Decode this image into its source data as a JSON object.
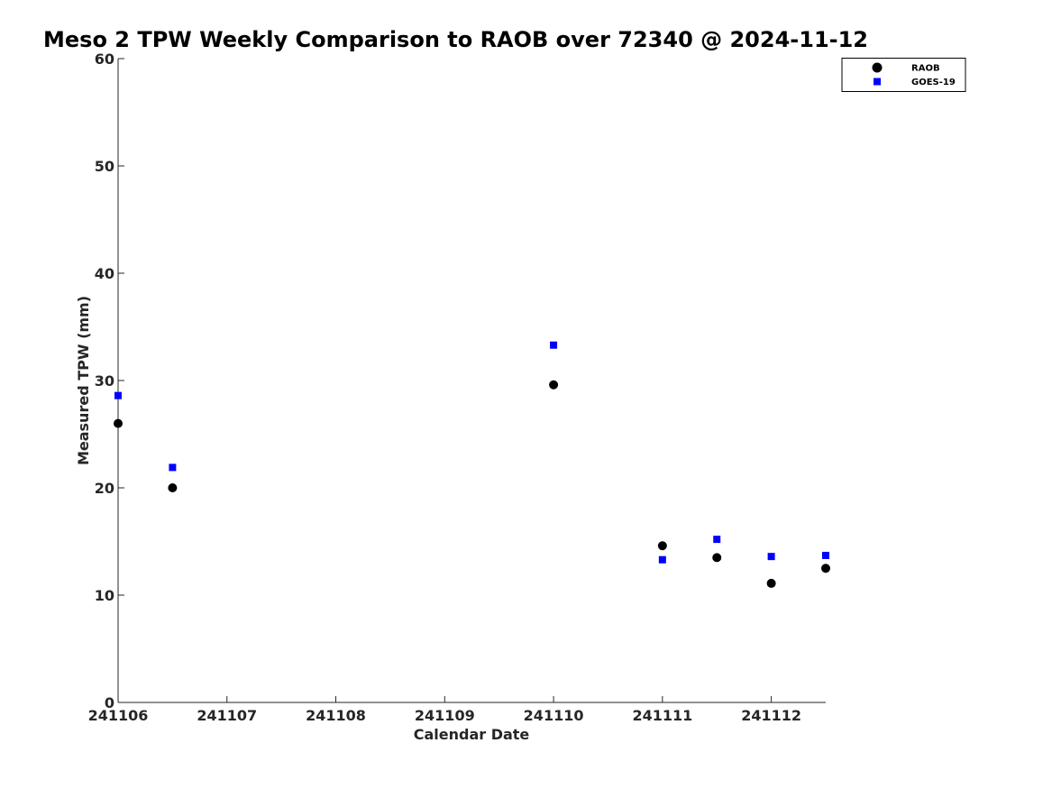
{
  "chart_data": {
    "type": "scatter",
    "title": "Meso 2 TPW Weekly Comparison to RAOB over 72340 @ 2024-11-12",
    "xlabel": "Calendar Date",
    "ylabel": "Measured TPW (mm)",
    "xlim": [
      241106,
      241112.5
    ],
    "ylim": [
      0,
      60
    ],
    "x_ticks": [
      241106,
      241107,
      241108,
      241109,
      241110,
      241111,
      241112
    ],
    "x_tick_labels": [
      "241106",
      "241107",
      "241108",
      "241109",
      "241110",
      "241111",
      "241112"
    ],
    "y_ticks": [
      0,
      10,
      20,
      30,
      40,
      50,
      60
    ],
    "y_tick_labels": [
      "0",
      "10",
      "20",
      "30",
      "40",
      "50",
      "60"
    ],
    "grid": false,
    "legend_position": "top-right",
    "series": [
      {
        "name": "RAOB",
        "marker": "circle",
        "color": "#000000",
        "points": [
          {
            "x": 241106.0,
            "y": 26.0
          },
          {
            "x": 241106.5,
            "y": 20.0
          },
          {
            "x": 241110.0,
            "y": 29.6
          },
          {
            "x": 241111.0,
            "y": 14.6
          },
          {
            "x": 241111.5,
            "y": 13.5
          },
          {
            "x": 241112.0,
            "y": 11.1
          },
          {
            "x": 241112.5,
            "y": 12.5
          }
        ]
      },
      {
        "name": "GOES-19",
        "marker": "square",
        "color": "#0000ff",
        "points": [
          {
            "x": 241106.0,
            "y": 28.6
          },
          {
            "x": 241106.5,
            "y": 21.9
          },
          {
            "x": 241110.0,
            "y": 33.3
          },
          {
            "x": 241111.0,
            "y": 13.3
          },
          {
            "x": 241111.5,
            "y": 15.2
          },
          {
            "x": 241112.0,
            "y": 13.6
          },
          {
            "x": 241112.5,
            "y": 13.7
          }
        ]
      }
    ]
  }
}
